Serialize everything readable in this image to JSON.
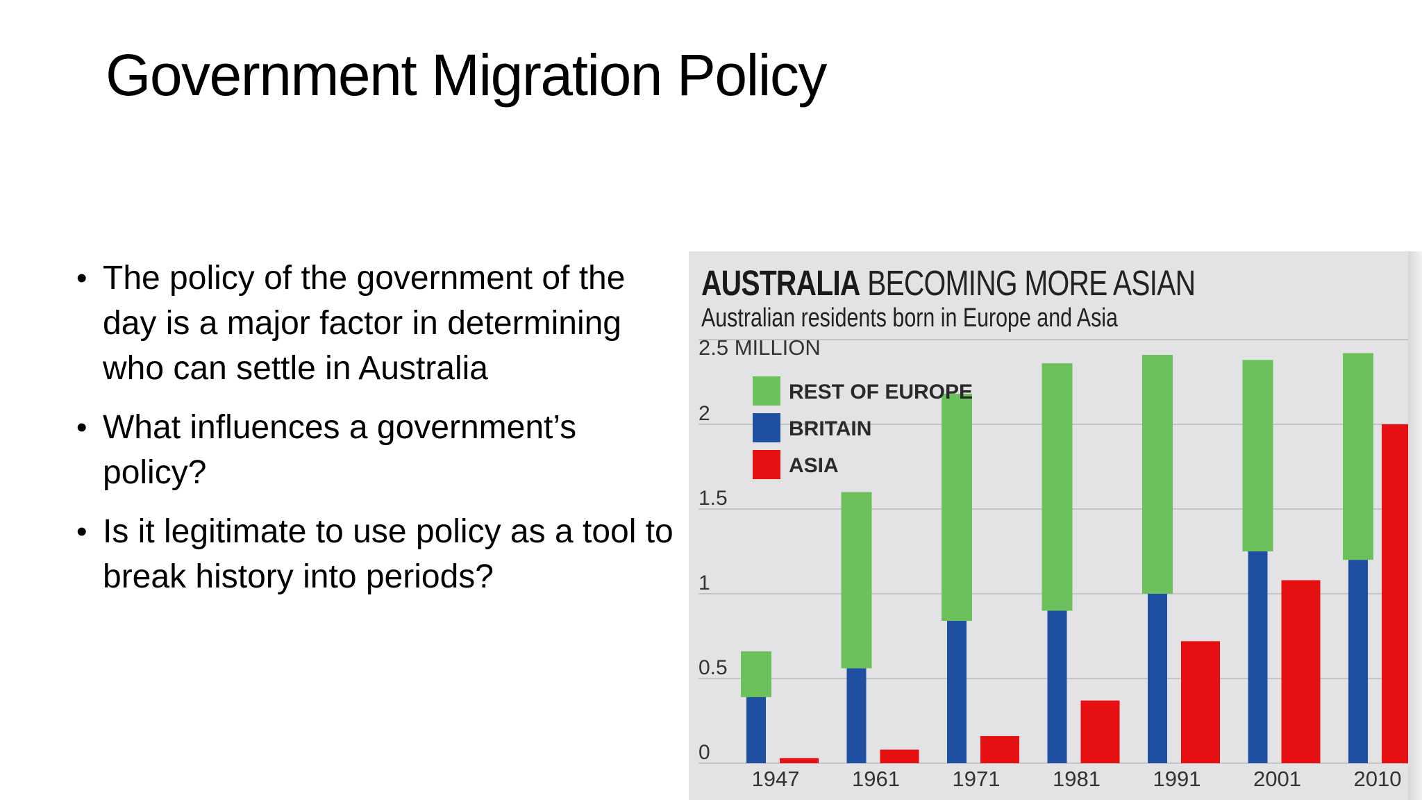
{
  "slide": {
    "title": "Government Migration Policy",
    "bullets": [
      "The policy of the government of the day is a major factor in determining who can settle in Australia",
      "What influences a government’s policy?",
      "Is it legitimate to use policy as a tool to break history into periods?"
    ]
  },
  "chart_data": {
    "type": "bar",
    "title_bold": "AUSTRALIA",
    "title_rest": "BECOMING MORE ASIAN",
    "subtitle": "Australian residents born in Europe and Asia",
    "ylabel": "2.5 MILLION",
    "ylim": [
      0,
      2.5
    ],
    "yticks": [
      {
        "value": 0,
        "label": "0"
      },
      {
        "value": 0.5,
        "label": "0.5"
      },
      {
        "value": 1,
        "label": "1"
      },
      {
        "value": 1.5,
        "label": "1.5"
      },
      {
        "value": 2,
        "label": "2"
      }
    ],
    "categories": [
      "1947",
      "1961",
      "1971",
      "1981",
      "1991",
      "2001",
      "2010"
    ],
    "stacked_series": [
      {
        "name": "BRITAIN",
        "color": "#1e4fa0",
        "values": [
          0.39,
          0.56,
          0.84,
          0.9,
          1.0,
          1.25,
          1.2
        ]
      },
      {
        "name": "REST OF EUROPE",
        "color": "#6cc15c",
        "values": [
          0.27,
          1.04,
          1.34,
          1.46,
          1.41,
          1.13,
          1.22
        ]
      }
    ],
    "side_series": {
      "name": "ASIA",
      "color": "#e60f12",
      "values": [
        0.03,
        0.08,
        0.16,
        0.37,
        0.72,
        1.08,
        2.0
      ]
    },
    "legend": {
      "placement": "top-left",
      "entries": [
        {
          "name": "REST OF EUROPE",
          "color": "#6cc15c"
        },
        {
          "name": "BRITAIN",
          "color": "#1e4fa0"
        },
        {
          "name": "ASIA",
          "color": "#e60f12"
        }
      ]
    },
    "grid": true
  }
}
